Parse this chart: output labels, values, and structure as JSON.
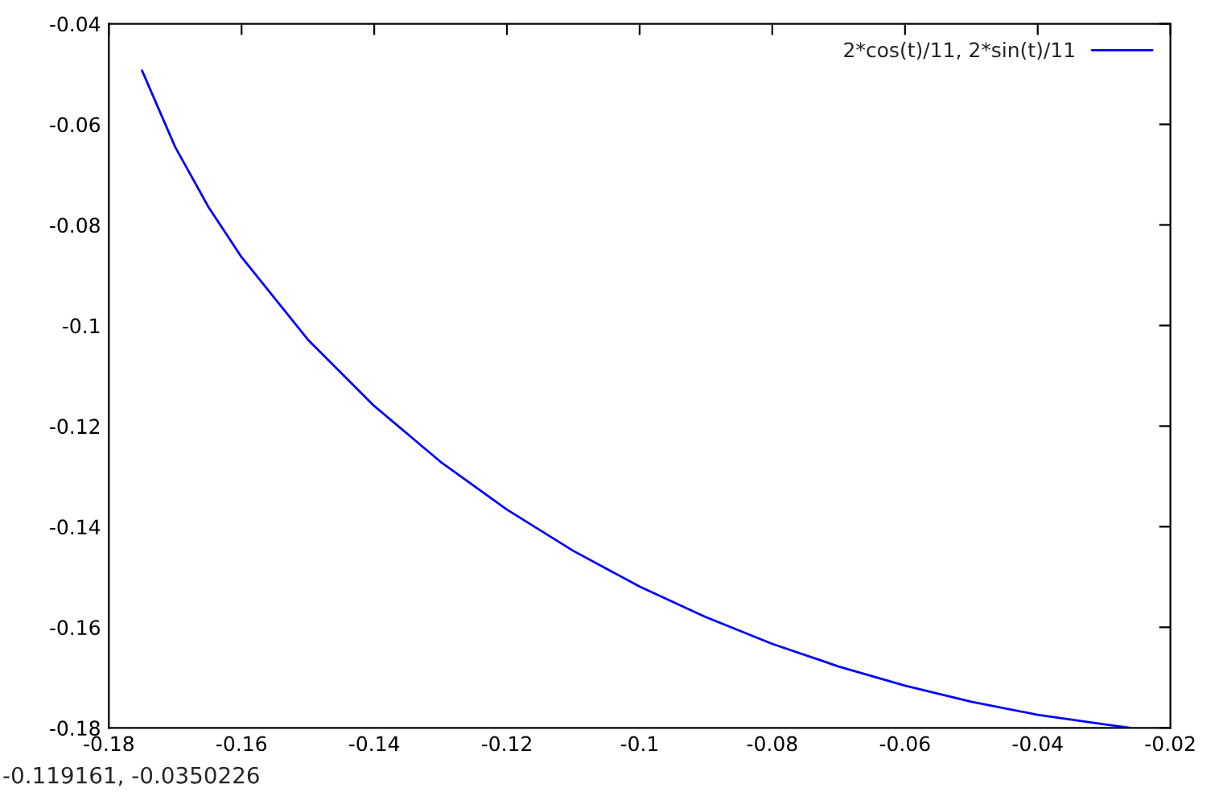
{
  "chart_data": {
    "type": "line",
    "x": [
      -0.175,
      -0.17,
      -0.165,
      -0.16,
      -0.15,
      -0.14,
      -0.13,
      -0.12,
      -0.11,
      -0.1,
      -0.09,
      -0.08,
      -0.07,
      -0.06,
      -0.05,
      -0.04,
      -0.03,
      -0.026
    ],
    "series": [
      {
        "name": "2*cos(t)/11, 2*sin(t)/11",
        "color": "#0000ff",
        "values": [
          -0.0493,
          -0.0645,
          -0.0764,
          -0.0864,
          -0.1028,
          -0.116,
          -0.1271,
          -0.1366,
          -0.1448,
          -0.1519,
          -0.158,
          -0.1633,
          -0.1678,
          -0.1716,
          -0.1748,
          -0.1774,
          -0.1793,
          -0.18
        ]
      }
    ],
    "xlim": [
      -0.18,
      -0.02
    ],
    "xticks": [
      -0.18,
      -0.16,
      -0.14,
      -0.12,
      -0.1,
      -0.08,
      -0.06,
      -0.04,
      -0.02
    ],
    "ylim": [
      -0.18,
      -0.04
    ],
    "yticks": [
      -0.18,
      -0.16,
      -0.14,
      -0.12,
      -0.1,
      -0.08,
      -0.06,
      -0.04
    ],
    "legend": "top right",
    "grid": false,
    "marker": "none",
    "line_style": "solid",
    "annotations": [
      "-0.119161, -0.0350226"
    ]
  }
}
